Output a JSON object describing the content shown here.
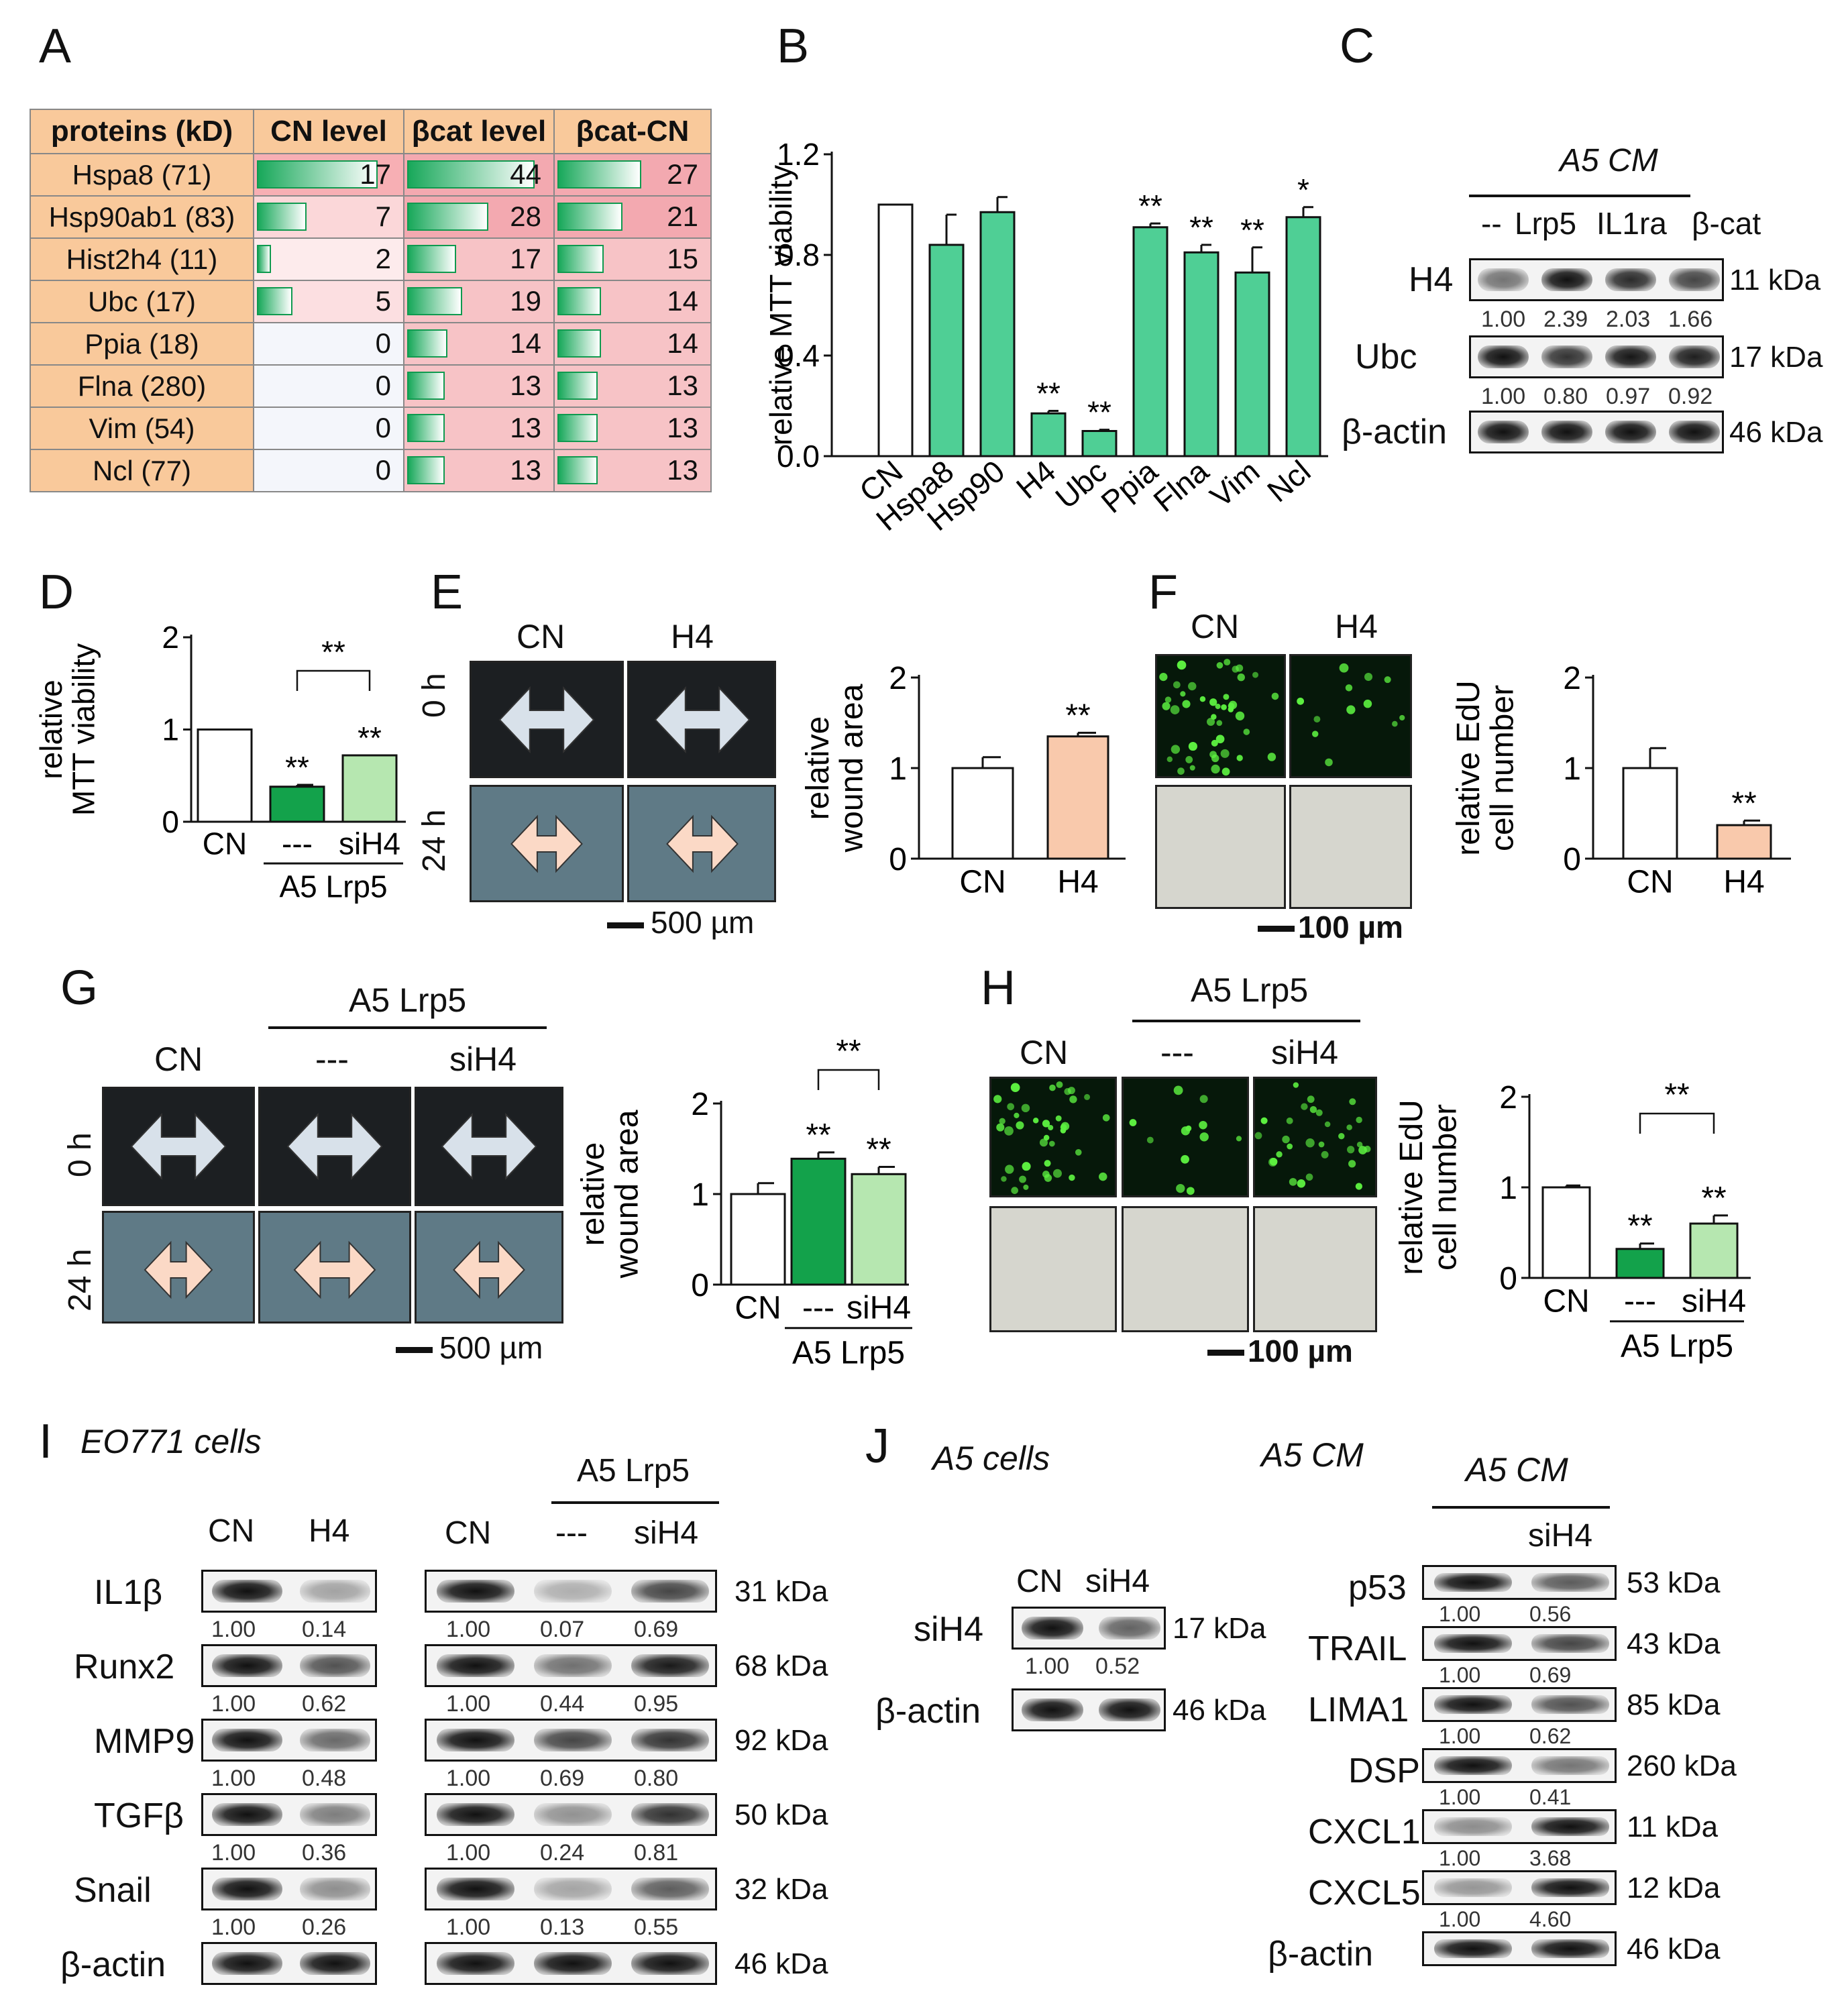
{
  "panels": {
    "A": "A",
    "B": "B",
    "C": "C",
    "D": "D",
    "E": "E",
    "F": "F",
    "G": "G",
    "H": "H",
    "I": "I",
    "J": "J"
  },
  "panelA": {
    "headers": [
      "proteins (kD)",
      "CN level",
      "βcat level",
      "βcat-CN"
    ],
    "rows": [
      {
        "protein": "Hspa8 (71)",
        "cn": 17,
        "bcat": 44,
        "diff": 27
      },
      {
        "protein": "Hsp90ab1 (83)",
        "cn": 7,
        "bcat": 28,
        "diff": 21
      },
      {
        "protein": "Hist2h4 (11)",
        "cn": 2,
        "bcat": 17,
        "diff": 15
      },
      {
        "protein": "Ubc (17)",
        "cn": 5,
        "bcat": 19,
        "diff": 14
      },
      {
        "protein": "Ppia (18)",
        "cn": 0,
        "bcat": 14,
        "diff": 14
      },
      {
        "protein": "Flna (280)",
        "cn": 0,
        "bcat": 13,
        "diff": 13
      },
      {
        "protein": "Vim (54)",
        "cn": 0,
        "bcat": 13,
        "diff": 13
      },
      {
        "protein": "Ncl (77)",
        "cn": 0,
        "bcat": 13,
        "diff": 13
      }
    ]
  },
  "panelC": {
    "title": "A5 CM",
    "lanes": [
      "--",
      "Lrp5",
      "IL1ra",
      "β-cat"
    ],
    "rows": [
      {
        "name": "H4",
        "kda": "11 kDa",
        "values": [
          "1.00",
          "2.39",
          "2.03",
          "1.66"
        ]
      },
      {
        "name": "Ubc",
        "kda": "17 kDa",
        "values": [
          "1.00",
          "0.80",
          "0.97",
          "0.92"
        ]
      },
      {
        "name": "β-actin",
        "kda": "46 kDa",
        "values": []
      }
    ]
  },
  "panelE": {
    "cols": [
      "CN",
      "H4"
    ],
    "rows": [
      "0 h",
      "24 h"
    ],
    "scale": "500 µm"
  },
  "panelF": {
    "cols": [
      "CN",
      "H4"
    ],
    "scale": "100 µm"
  },
  "panelG": {
    "group": "A5 Lrp5",
    "cols": [
      "CN",
      "---",
      "siH4"
    ],
    "rows": [
      "0 h",
      "24 h"
    ],
    "scale": "500 µm"
  },
  "panelH": {
    "group": "A5 Lrp5",
    "cols": [
      "CN",
      "---",
      "siH4"
    ],
    "scale": "100 µm"
  },
  "panelI": {
    "title": "EO771 cells",
    "left_lanes": [
      "CN",
      "H4"
    ],
    "right_group": "A5 Lrp5",
    "right_lanes": [
      "CN",
      "---",
      "siH4"
    ],
    "rows": [
      {
        "name": "IL1β",
        "left": [
          "1.00",
          "0.14"
        ],
        "right": [
          "1.00",
          "0.07",
          "0.69"
        ],
        "kda": "31 kDa"
      },
      {
        "name": "Runx2",
        "left": [
          "1.00",
          "0.62"
        ],
        "right": [
          "1.00",
          "0.44",
          "0.95"
        ],
        "kda": "68 kDa"
      },
      {
        "name": "MMP9",
        "left": [
          "1.00",
          "0.48"
        ],
        "right": [
          "1.00",
          "0.69",
          "0.80"
        ],
        "kda": "92 kDa"
      },
      {
        "name": "TGFβ",
        "left": [
          "1.00",
          "0.36"
        ],
        "right": [
          "1.00",
          "0.24",
          "0.81"
        ],
        "kda": "50 kDa"
      },
      {
        "name": "Snail",
        "left": [
          "1.00",
          "0.26"
        ],
        "right": [
          "1.00",
          "0.13",
          "0.55"
        ],
        "kda": "32 kDa"
      },
      {
        "name": "β-actin",
        "left": [],
        "right": [],
        "kda": "46 kDa"
      }
    ]
  },
  "panelJ": {
    "left_title": "A5 cells",
    "left_lanes": [
      "CN",
      "siH4"
    ],
    "left_rows": [
      {
        "name": "siH4",
        "values": [
          "1.00",
          "0.52"
        ],
        "kda": "17 kDa"
      },
      {
        "name": "β-actin",
        "values": [],
        "kda": "46 kDa"
      }
    ],
    "mid_title": "A5 CM",
    "right_title": "A5 CM",
    "right_lane": "siH4",
    "right_rows": [
      {
        "name": "p53",
        "values": [
          "1.00",
          "0.56"
        ],
        "kda": "53 kDa"
      },
      {
        "name": "TRAIL",
        "values": [
          "1.00",
          "0.69"
        ],
        "kda": "43 kDa"
      },
      {
        "name": "LIMA1",
        "values": [
          "1.00",
          "0.62"
        ],
        "kda": "85 kDa"
      },
      {
        "name": "DSP",
        "values": [
          "1.00",
          "0.41"
        ],
        "kda": "260 kDa"
      },
      {
        "name": "CXCL1",
        "values": [
          "1.00",
          "3.68"
        ],
        "kda": "11 kDa"
      },
      {
        "name": "CXCL5",
        "values": [
          "1.00",
          "4.60"
        ],
        "kda": "12 kDa"
      },
      {
        "name": "β-actin",
        "values": [],
        "kda": "46 kDa"
      }
    ]
  },
  "colors": {
    "green": "#4fcf95",
    "dark_green": "#13a24b",
    "light_green": "#b6e7b0",
    "peach": "#f9c9ac",
    "table_orange": "#f9c99b",
    "table_pink": "#f7c3c6"
  },
  "chart_data": [
    {
      "id": "B",
      "type": "bar",
      "categories": [
        "CN",
        "Hspa8",
        "Hsp90",
        "H4",
        "Ubc",
        "Ppia",
        "Flna",
        "Vim",
        "Ncl"
      ],
      "values": [
        1.0,
        0.84,
        0.97,
        0.17,
        0.1,
        0.91,
        0.81,
        0.73,
        0.95
      ],
      "errors": [
        0,
        0.12,
        0.06,
        0.01,
        0.005,
        0.015,
        0.03,
        0.1,
        0.04
      ],
      "sig": [
        "",
        "",
        "",
        "**",
        "**",
        "**",
        "**",
        "**",
        "*"
      ],
      "ylabel": "relative MTT viability",
      "ylim": [
        0,
        1.2
      ],
      "yticks": [
        "0.0",
        "0.4",
        "0.8",
        "1.2"
      ]
    },
    {
      "id": "D",
      "type": "bar",
      "categories": [
        "CN",
        "---",
        "siH4"
      ],
      "values": [
        1.0,
        0.38,
        0.72
      ],
      "errors": [
        0,
        0.02,
        0
      ],
      "sig": [
        "",
        "**",
        "**"
      ],
      "bracket": "**",
      "group_label": "A5 Lrp5",
      "ylabel": "relative MTT viability",
      "ylim": [
        0,
        2
      ],
      "yticks": [
        "0",
        "1",
        "2"
      ]
    },
    {
      "id": "E",
      "type": "bar",
      "categories": [
        "CN",
        "H4"
      ],
      "values": [
        1.0,
        1.35
      ],
      "errors": [
        0.12,
        0.04
      ],
      "sig": [
        "",
        "**"
      ],
      "ylabel": "relative wound area",
      "ylim": [
        0,
        2
      ],
      "yticks": [
        "0",
        "1",
        "2"
      ]
    },
    {
      "id": "F",
      "type": "bar",
      "categories": [
        "CN",
        "H4"
      ],
      "values": [
        1.0,
        0.37
      ],
      "errors": [
        0.22,
        0.05
      ],
      "sig": [
        "",
        "**"
      ],
      "ylabel": "relative EdU cell number",
      "ylim": [
        0,
        2
      ],
      "yticks": [
        "0",
        "1",
        "2"
      ]
    },
    {
      "id": "G",
      "type": "bar",
      "categories": [
        "CN",
        "---",
        "siH4"
      ],
      "values": [
        1.0,
        1.39,
        1.22
      ],
      "errors": [
        0.12,
        0.07,
        0.08
      ],
      "sig": [
        "",
        "**",
        "**"
      ],
      "bracket": "**",
      "group_label": "A5 Lrp5",
      "ylabel": "relative wound area",
      "ylim": [
        0,
        2
      ],
      "yticks": [
        "0",
        "1",
        "2"
      ]
    },
    {
      "id": "H",
      "type": "bar",
      "categories": [
        "CN",
        "---",
        "siH4"
      ],
      "values": [
        1.0,
        0.32,
        0.6
      ],
      "errors": [
        0.02,
        0.06,
        0.09
      ],
      "sig": [
        "",
        "**",
        "**"
      ],
      "bracket": "**",
      "group_label": "A5 Lrp5",
      "ylabel": "relative EdU cell number",
      "ylim": [
        0,
        2
      ],
      "yticks": [
        "0",
        "1",
        "2"
      ]
    }
  ]
}
